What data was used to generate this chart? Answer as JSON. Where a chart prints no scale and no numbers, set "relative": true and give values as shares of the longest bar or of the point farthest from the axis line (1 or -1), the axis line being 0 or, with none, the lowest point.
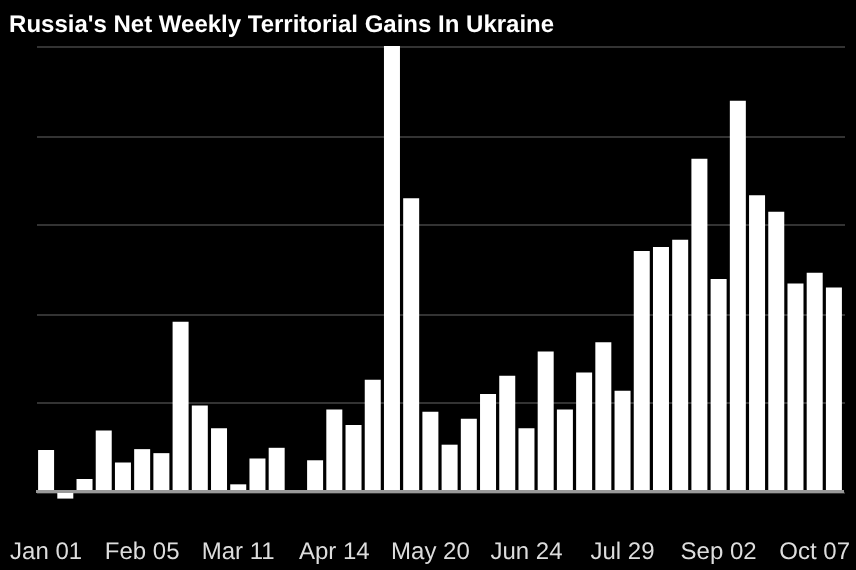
{
  "chart_data": {
    "type": "bar",
    "title": "Russia's Net Weekly Territorial Gains In Ukraine",
    "categories": [
      "Jan 01",
      null,
      null,
      null,
      null,
      "Feb 05",
      null,
      null,
      null,
      null,
      "Mar 11",
      null,
      null,
      null,
      null,
      "Apr 14",
      null,
      null,
      null,
      null,
      "May 20",
      null,
      null,
      null,
      null,
      "Jun 24",
      null,
      null,
      null,
      null,
      "Jul 29",
      null,
      null,
      null,
      null,
      "Sep 02",
      null,
      null,
      null,
      null,
      "Oct 07",
      null
    ],
    "values": [
      0.093,
      -0.016,
      0.028,
      0.137,
      0.065,
      0.095,
      0.086,
      0.381,
      0.193,
      0.142,
      0.016,
      0.074,
      0.098,
      0,
      0.07,
      0.184,
      0.149,
      0.251,
      1,
      0.658,
      0.179,
      0.105,
      0.163,
      0.219,
      0.26,
      0.142,
      0.314,
      0.184,
      0.267,
      0.335,
      0.226,
      0.54,
      0.549,
      0.565,
      0.747,
      0.477,
      0.877,
      0.665,
      0.628,
      0.467,
      0.491,
      0.458
    ],
    "color": "#ffffff",
    "relative": true,
    "grid": "y"
  }
}
